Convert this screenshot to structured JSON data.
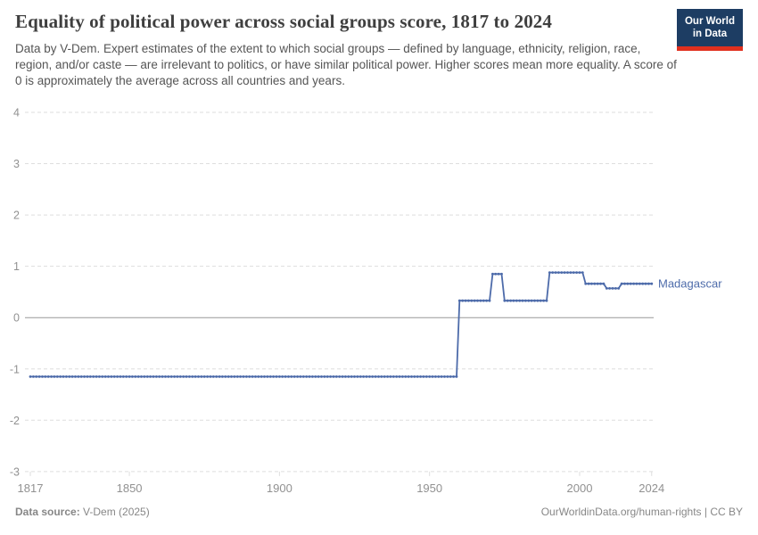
{
  "header": {
    "title": "Equality of political power across social groups score, 1817 to 2024",
    "subtitle": "Data by V-Dem. Expert estimates of the extent to which social groups — defined by language, ethnicity, religion, race, region, and/or caste — are irrelevant to politics, or have similar political power. Higher scores mean more equality. A score of 0 is approximately the average across all countries and years.",
    "logo": {
      "line1": "Our World",
      "line2": "in Data"
    }
  },
  "chart_data": {
    "type": "line",
    "title": "Equality of political power across social groups score, 1817 to 2024",
    "entity": "Madagascar",
    "x": {
      "ticks": [
        1817,
        1850,
        1900,
        1950,
        2000,
        2024
      ],
      "range": [
        1817,
        2024
      ]
    },
    "y": {
      "ticks": [
        4,
        3,
        2,
        1,
        0,
        -1,
        -2,
        -3
      ],
      "range": [
        -3,
        4
      ],
      "zero_line": true
    },
    "grid": "dashed horizontal gridlines",
    "legend_position": "label at end of line",
    "series": [
      {
        "name": "Madagascar",
        "color": "#4d6baa",
        "step_segments": [
          {
            "from": 1817,
            "to": 1959,
            "value": -1.15
          },
          {
            "from": 1960,
            "to": 1970,
            "value": 0.33
          },
          {
            "from": 1971,
            "to": 1974,
            "value": 0.85
          },
          {
            "from": 1975,
            "to": 1989,
            "value": 0.33
          },
          {
            "from": 1990,
            "to": 2001,
            "value": 0.88
          },
          {
            "from": 2002,
            "to": 2008,
            "value": 0.66
          },
          {
            "from": 2009,
            "to": 2013,
            "value": 0.57
          },
          {
            "from": 2014,
            "to": 2024,
            "value": 0.66
          }
        ]
      }
    ]
  },
  "footer": {
    "source_label": "Data source: ",
    "source_value": "V-Dem (2025)",
    "credit": "OurWorldinData.org/human-rights | CC BY"
  },
  "colors": {
    "series_blue": "#4d6baa",
    "logo_navy": "#1d3d63",
    "logo_red": "#e0301e",
    "gridline": "#dedede",
    "zero_line": "#999999",
    "axis_text": "#919191",
    "title_text": "#3f3f3f",
    "subtitle_text": "#555555",
    "footer_text": "#878787"
  }
}
